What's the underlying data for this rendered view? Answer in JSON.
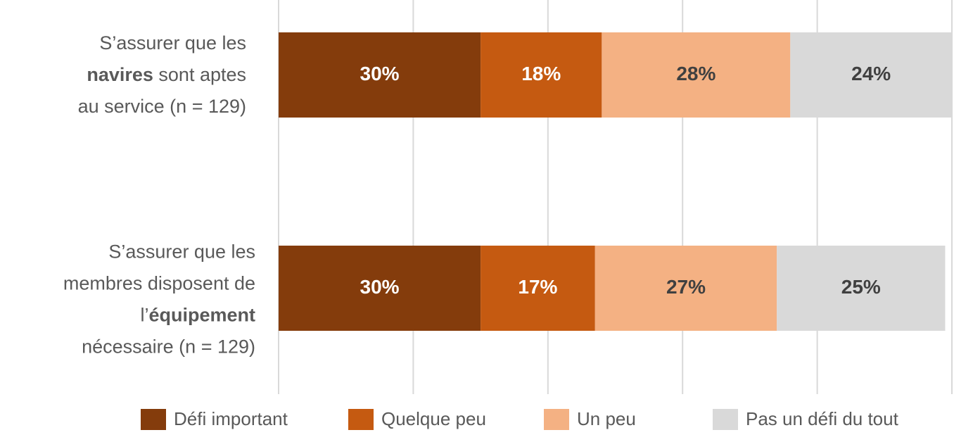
{
  "chart_data": {
    "type": "stacked-barh",
    "categories": [
      [
        [
          {
            "text": "S’assurer que les"
          }
        ],
        [
          {
            "text": "navires",
            "bold": true
          },
          {
            "text": " sont aptes"
          }
        ],
        [
          {
            "text": "au service (n = 129)"
          }
        ]
      ],
      [
        [
          {
            "text": "S’assurer que les"
          }
        ],
        [
          {
            "text": "membres disposent de"
          }
        ],
        [
          {
            "text": "l’"
          },
          {
            "text": "équipement",
            "bold": true
          }
        ],
        [
          {
            "text": "nécessaire (n = 129)"
          }
        ]
      ]
    ],
    "series": [
      {
        "name": "Défi important",
        "color": "#843C0C",
        "label_color": "#FFFFFF",
        "values": [
          30,
          30
        ],
        "value_labels": [
          "30%",
          "30%"
        ]
      },
      {
        "name": "Quelque peu",
        "color": "#C55A11",
        "label_color": "#FFFFFF",
        "values": [
          18,
          17
        ],
        "value_labels": [
          "18%",
          "17%"
        ]
      },
      {
        "name": "Un peu",
        "color": "#F4B183",
        "label_color": "#404040",
        "values": [
          28,
          27
        ],
        "value_labels": [
          "28%",
          "27%"
        ]
      },
      {
        "name": "Pas un défi du tout",
        "color": "#D9D9D9",
        "label_color": "#404040",
        "values": [
          24,
          25
        ],
        "value_labels": [
          "24%",
          "25%"
        ]
      }
    ],
    "xlim": [
      0,
      100
    ],
    "xticks": [
      0,
      20,
      40,
      60,
      80,
      100
    ],
    "grid": true,
    "legend": "bottom"
  }
}
